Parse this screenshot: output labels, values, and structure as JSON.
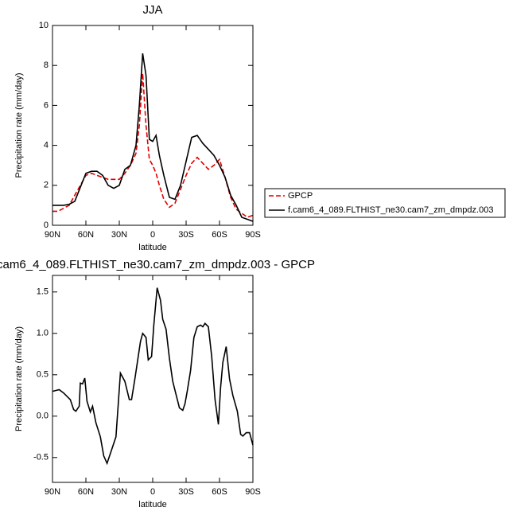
{
  "chart_data": [
    {
      "type": "line",
      "title": "JJA",
      "xlabel": "latitude",
      "ylabel": "Precipitation rate (mm/day)",
      "x": [
        90,
        85,
        80,
        75,
        70,
        65,
        60,
        55,
        50,
        45,
        40,
        35,
        30,
        25,
        20,
        15,
        12,
        9,
        6,
        3,
        0,
        -3,
        -6,
        -10,
        -15,
        -20,
        -25,
        -30,
        -35,
        -40,
        -45,
        -50,
        -55,
        -60,
        -65,
        -70,
        -75,
        -80,
        -85,
        -90
      ],
      "series": [
        {
          "name": "GPCP",
          "color": "#e00000",
          "dash": true,
          "values": [
            0.7,
            0.7,
            0.85,
            1.0,
            1.5,
            2.0,
            2.5,
            2.6,
            2.5,
            2.4,
            2.3,
            2.3,
            2.3,
            2.6,
            3.0,
            3.6,
            5.0,
            7.6,
            5.0,
            3.3,
            3.0,
            2.6,
            2.0,
            1.3,
            0.9,
            1.1,
            1.8,
            2.5,
            3.1,
            3.4,
            3.1,
            2.8,
            3.0,
            3.3,
            2.4,
            1.4,
            0.8,
            0.6,
            0.4,
            0.5
          ]
        },
        {
          "name": "f.cam6_4_089.FLTHIST_ne30.cam7_zm_dmpdz.003",
          "color": "#000000",
          "dash": false,
          "values": [
            1.0,
            1.0,
            1.0,
            1.05,
            1.2,
            1.9,
            2.6,
            2.7,
            2.7,
            2.5,
            2.0,
            1.85,
            2.0,
            2.8,
            3.0,
            4.0,
            6.0,
            8.6,
            7.5,
            4.3,
            4.2,
            4.5,
            3.5,
            2.5,
            1.4,
            1.3,
            2.0,
            3.2,
            4.4,
            4.5,
            4.1,
            3.8,
            3.5,
            3.0,
            2.4,
            1.5,
            1.0,
            0.4,
            0.3,
            0.2
          ]
        }
      ],
      "xlim": [
        90,
        -90
      ],
      "xticks": [
        {
          "value": 90,
          "label": "90N"
        },
        {
          "value": 60,
          "label": "60N"
        },
        {
          "value": 30,
          "label": "30N"
        },
        0,
        {
          "value": -30,
          "label": "30S"
        },
        {
          "value": -60,
          "label": "60S"
        },
        {
          "value": -90,
          "label": "90S"
        }
      ],
      "ylim": [
        0,
        10
      ],
      "yticks": [
        0,
        2,
        4,
        6,
        8,
        10
      ]
    },
    {
      "type": "line",
      "title": "cam6_4_089.FLTHIST_ne30.cam7_zm_dmpdz.003 - GPCP",
      "xlabel": "latitude",
      "ylabel": "Precipitation rate (mm/day)",
      "x": [
        90,
        84,
        80,
        74,
        71,
        69,
        66,
        65,
        63,
        61,
        59,
        56,
        54,
        51,
        47,
        44,
        41,
        38,
        33,
        29,
        25,
        21,
        19,
        16,
        11,
        9,
        6,
        4,
        1,
        -1,
        -4,
        -7,
        -9,
        -12,
        -15,
        -18,
        -21,
        -24,
        -27,
        -29,
        -31,
        -34,
        -37,
        -40,
        -43,
        -45,
        -47,
        -50,
        -53,
        -56,
        -59,
        -61,
        -63,
        -66,
        -69,
        -72,
        -76,
        -79,
        -81,
        -84,
        -87,
        -90
      ],
      "series": [
        {
          "color": "#000000",
          "dash": false,
          "values": [
            0.3,
            0.32,
            0.28,
            0.2,
            0.08,
            0.06,
            0.12,
            0.4,
            0.39,
            0.46,
            0.18,
            0.05,
            0.12,
            -0.08,
            -0.25,
            -0.48,
            -0.57,
            -0.45,
            -0.25,
            0.52,
            0.42,
            0.2,
            0.2,
            0.45,
            0.9,
            1.0,
            0.95,
            0.68,
            0.72,
            1.1,
            1.55,
            1.4,
            1.17,
            1.05,
            0.7,
            0.42,
            0.26,
            0.1,
            0.07,
            0.15,
            0.3,
            0.55,
            0.95,
            1.08,
            1.1,
            1.08,
            1.12,
            1.08,
            0.72,
            0.2,
            -0.1,
            0.35,
            0.65,
            0.84,
            0.45,
            0.25,
            0.06,
            -0.22,
            -0.24,
            -0.2,
            -0.2,
            -0.35
          ]
        }
      ],
      "xlim": [
        90,
        -90
      ],
      "xticks": [
        {
          "value": 90,
          "label": "90N"
        },
        {
          "value": 60,
          "label": "60N"
        },
        {
          "value": 30,
          "label": "30N"
        },
        0,
        {
          "value": -30,
          "label": "30S"
        },
        {
          "value": -60,
          "label": "60S"
        },
        {
          "value": -90,
          "label": "90S"
        }
      ],
      "ylim": [
        -0.8,
        1.7
      ],
      "yticks": [
        -0.5,
        {
          "value": 0,
          "label": "0.0"
        },
        0.5,
        {
          "value": 1,
          "label": "1.0"
        },
        1.5
      ]
    }
  ]
}
